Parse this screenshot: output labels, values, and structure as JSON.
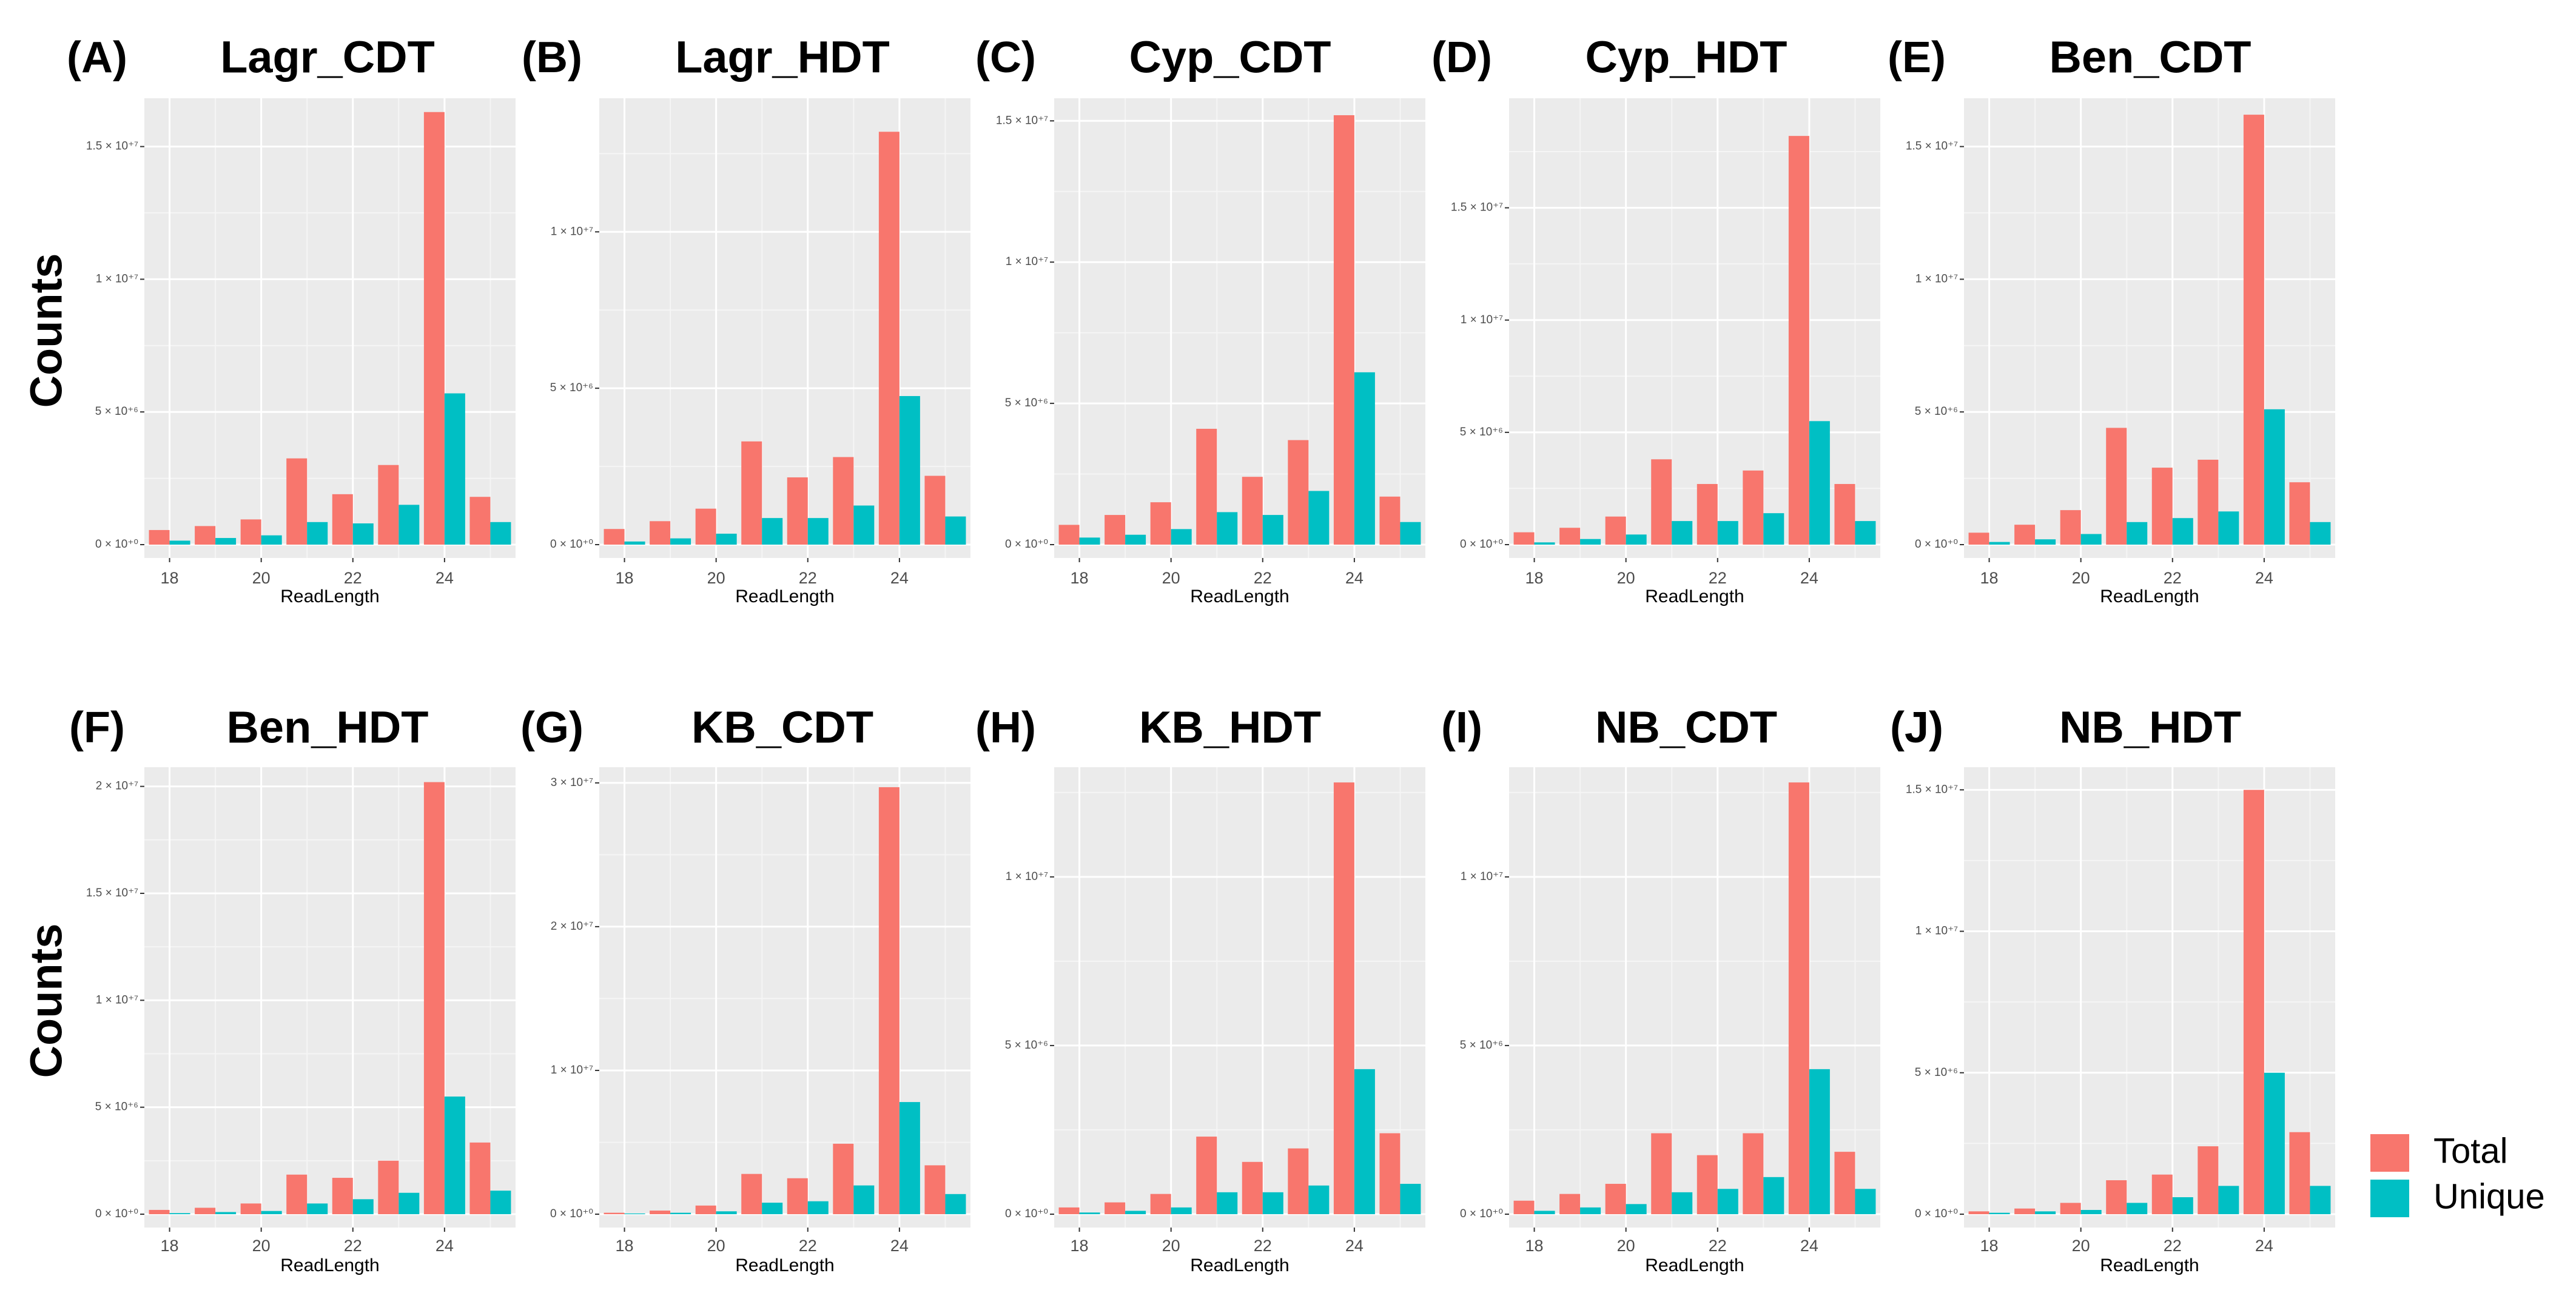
{
  "colors": {
    "total": "#F8766D",
    "unique": "#00BFC4",
    "panel_bg": "#EBEBEB",
    "grid_major": "#FFFFFF",
    "grid_minor": "#F5F5F5"
  },
  "rows": [
    {
      "label": "Counts"
    },
    {
      "label": "Counts"
    }
  ],
  "legend": {
    "items": [
      {
        "key": "total",
        "label": "Total"
      },
      {
        "key": "unique",
        "label": "Unique"
      }
    ]
  },
  "chart_data": [
    {
      "type": "bar",
      "panel_letter": "(A)",
      "title": "Lagr_CDT",
      "xlabel": "ReadLength",
      "ylabel": "Counts",
      "x": [
        18,
        19,
        20,
        21,
        22,
        23,
        24,
        25
      ],
      "x_ticks": [
        "18",
        "20",
        "22",
        "24"
      ],
      "x_tick_values": [
        18,
        20,
        22,
        24
      ],
      "ylim": [
        0,
        16500000.0
      ],
      "y_ticks": [
        0,
        5000000.0,
        10000000.0,
        15000000.0
      ],
      "y_tick_labels": [
        "0 × 10⁺⁰",
        "5 × 10⁺⁶",
        "1 × 10⁺⁷",
        "1.5 × 10⁺⁷"
      ],
      "series": [
        {
          "name": "Total",
          "values": [
            550000,
            700000,
            950000,
            3250000,
            1900000,
            3000000,
            16300000,
            1800000
          ]
        },
        {
          "name": "Unique",
          "values": [
            150000,
            250000,
            350000,
            850000,
            800000,
            1500000,
            5700000,
            850000
          ]
        }
      ]
    },
    {
      "type": "bar",
      "panel_letter": "(B)",
      "title": "Lagr_HDT",
      "xlabel": "ReadLength",
      "ylabel": "Counts",
      "x": [
        18,
        19,
        20,
        21,
        22,
        23,
        24,
        25
      ],
      "x_ticks": [
        "18",
        "20",
        "22",
        "24"
      ],
      "x_tick_values": [
        18,
        20,
        22,
        24
      ],
      "ylim": [
        0,
        14000000.0
      ],
      "y_ticks": [
        0,
        5000000.0,
        10000000.0
      ],
      "y_tick_labels": [
        "0 × 10⁺⁰",
        "5 × 10⁺⁶",
        "1 × 10⁺⁷"
      ],
      "series": [
        {
          "name": "Total",
          "values": [
            500000,
            750000,
            1150000,
            3300000,
            2150000,
            2800000,
            13200000,
            2200000
          ]
        },
        {
          "name": "Unique",
          "values": [
            100000,
            200000,
            350000,
            850000,
            850000,
            1250000,
            4750000,
            900000
          ]
        }
      ]
    },
    {
      "type": "bar",
      "panel_letter": "(C)",
      "title": "Cyp_CDT",
      "xlabel": "ReadLength",
      "ylabel": "Counts",
      "x": [
        18,
        19,
        20,
        21,
        22,
        23,
        24,
        25
      ],
      "x_ticks": [
        "18",
        "20",
        "22",
        "24"
      ],
      "x_tick_values": [
        18,
        20,
        22,
        24
      ],
      "ylim": [
        0,
        15500000.0
      ],
      "y_ticks": [
        0,
        5000000.0,
        10000000.0,
        15000000.0
      ],
      "y_tick_labels": [
        "0 × 10⁺⁰",
        "5 × 10⁺⁶",
        "1 × 10⁺⁷",
        "1.5 × 10⁺⁷"
      ],
      "series": [
        {
          "name": "Total",
          "values": [
            700000,
            1050000,
            1500000,
            4100000,
            2400000,
            3700000,
            15200000,
            1700000
          ]
        },
        {
          "name": "Unique",
          "values": [
            250000,
            350000,
            550000,
            1150000,
            1050000,
            1900000,
            6100000,
            800000
          ]
        }
      ]
    },
    {
      "type": "bar",
      "panel_letter": "(D)",
      "title": "Cyp_HDT",
      "xlabel": "ReadLength",
      "ylabel": "Counts",
      "x": [
        18,
        19,
        20,
        21,
        22,
        23,
        24,
        25
      ],
      "x_ticks": [
        "18",
        "20",
        "22",
        "24"
      ],
      "x_tick_values": [
        18,
        20,
        22,
        24
      ],
      "ylim": [
        0,
        19500000.0
      ],
      "y_ticks": [
        0,
        5000000.0,
        10000000.0,
        15000000.0
      ],
      "y_tick_labels": [
        "0 × 10⁺⁰",
        "5 × 10⁺⁶",
        "1 × 10⁺⁷",
        "1.5 × 10⁺⁷"
      ],
      "series": [
        {
          "name": "Total",
          "values": [
            550000,
            750000,
            1250000,
            3800000,
            2700000,
            3300000,
            18200000,
            2700000
          ]
        },
        {
          "name": "Unique",
          "values": [
            100000,
            250000,
            450000,
            1050000,
            1050000,
            1400000,
            5500000,
            1050000
          ]
        }
      ]
    },
    {
      "type": "bar",
      "panel_letter": "(E)",
      "title": "Ben_CDT",
      "xlabel": "ReadLength",
      "ylabel": "Counts",
      "x": [
        18,
        19,
        20,
        21,
        22,
        23,
        24,
        25
      ],
      "x_ticks": [
        "18",
        "20",
        "22",
        "24"
      ],
      "x_tick_values": [
        18,
        20,
        22,
        24
      ],
      "ylim": [
        0,
        16500000.0
      ],
      "y_ticks": [
        0,
        5000000.0,
        10000000.0,
        15000000.0
      ],
      "y_tick_labels": [
        "0 × 10⁺⁰",
        "5 × 10⁺⁶",
        "1 × 10⁺⁷",
        "1.5 × 10⁺⁷"
      ],
      "series": [
        {
          "name": "Total",
          "values": [
            450000,
            750000,
            1300000,
            4400000,
            2900000,
            3200000,
            16200000,
            2350000
          ]
        },
        {
          "name": "Unique",
          "values": [
            100000,
            200000,
            400000,
            850000,
            1000000,
            1250000,
            5100000,
            850000
          ]
        }
      ]
    },
    {
      "type": "bar",
      "panel_letter": "(F)",
      "title": "Ben_HDT",
      "xlabel": "ReadLength",
      "ylabel": "Counts",
      "x": [
        18,
        19,
        20,
        21,
        22,
        23,
        24,
        25
      ],
      "x_ticks": [
        "18",
        "20",
        "22",
        "24"
      ],
      "x_tick_values": [
        18,
        20,
        22,
        24
      ],
      "ylim": [
        0,
        20500000.0
      ],
      "y_ticks": [
        0,
        5000000.0,
        10000000.0,
        15000000.0,
        20000000.0
      ],
      "y_tick_labels": [
        "0 × 10⁺⁰",
        "5 × 10⁺⁶",
        "1 × 10⁺⁷",
        "1.5 × 10⁺⁷",
        "2 × 10⁺⁷"
      ],
      "series": [
        {
          "name": "Total",
          "values": [
            200000,
            300000,
            500000,
            1850000,
            1700000,
            2500000,
            20200000,
            3350000
          ]
        },
        {
          "name": "Unique",
          "values": [
            50000,
            100000,
            150000,
            500000,
            700000,
            1000000,
            5500000,
            1100000
          ]
        }
      ]
    },
    {
      "type": "bar",
      "panel_letter": "(G)",
      "title": "KB_CDT",
      "xlabel": "ReadLength",
      "ylabel": "Counts",
      "x": [
        18,
        19,
        20,
        21,
        22,
        23,
        24,
        25
      ],
      "x_ticks": [
        "18",
        "20",
        "22",
        "24"
      ],
      "x_tick_values": [
        18,
        20,
        22,
        24
      ],
      "ylim": [
        0,
        30500000.0
      ],
      "y_ticks": [
        0,
        10000000.0,
        20000000.0,
        30000000.0
      ],
      "y_tick_labels": [
        "0 × 10⁺⁰",
        "1 × 10⁺⁷",
        "2 × 10⁺⁷",
        "3 × 10⁺⁷"
      ],
      "series": [
        {
          "name": "Total",
          "values": [
            100000,
            250000,
            600000,
            2800000,
            2500000,
            4900000,
            29700000,
            3400000
          ]
        },
        {
          "name": "Unique",
          "values": [
            50000,
            100000,
            200000,
            800000,
            900000,
            2000000,
            7800000,
            1400000
          ]
        }
      ]
    },
    {
      "type": "bar",
      "panel_letter": "(H)",
      "title": "KB_HDT",
      "xlabel": "ReadLength",
      "ylabel": "Counts",
      "x": [
        18,
        19,
        20,
        21,
        22,
        23,
        24,
        25
      ],
      "x_ticks": [
        "18",
        "20",
        "22",
        "24"
      ],
      "x_tick_values": [
        18,
        20,
        22,
        24
      ],
      "ylim": [
        0,
        13000000.0
      ],
      "y_ticks": [
        0,
        5000000.0,
        10000000.0
      ],
      "y_tick_labels": [
        "0 × 10⁺⁰",
        "5 × 10⁺⁶",
        "1 × 10⁺⁷"
      ],
      "series": [
        {
          "name": "Total",
          "values": [
            200000,
            350000,
            600000,
            2300000,
            1550000,
            1950000,
            12800000,
            2400000
          ]
        },
        {
          "name": "Unique",
          "values": [
            50000,
            100000,
            200000,
            650000,
            650000,
            850000,
            4300000,
            900000
          ]
        }
      ]
    },
    {
      "type": "bar",
      "panel_letter": "(I)",
      "title": "NB_CDT",
      "xlabel": "ReadLength",
      "ylabel": "Counts",
      "x": [
        18,
        19,
        20,
        21,
        22,
        23,
        24,
        25
      ],
      "x_ticks": [
        "18",
        "20",
        "22",
        "24"
      ],
      "x_tick_values": [
        18,
        20,
        22,
        24
      ],
      "ylim": [
        0,
        13000000.0
      ],
      "y_ticks": [
        0,
        5000000.0,
        10000000.0
      ],
      "y_tick_labels": [
        "0 × 10⁺⁰",
        "5 × 10⁺⁶",
        "1 × 10⁺⁷"
      ],
      "series": [
        {
          "name": "Total",
          "values": [
            400000,
            600000,
            900000,
            2400000,
            1750000,
            2400000,
            12800000,
            1850000
          ]
        },
        {
          "name": "Unique",
          "values": [
            100000,
            200000,
            300000,
            650000,
            750000,
            1100000,
            4300000,
            750000
          ]
        }
      ]
    },
    {
      "type": "bar",
      "panel_letter": "(J)",
      "title": "NB_HDT",
      "xlabel": "ReadLength",
      "ylabel": "Counts",
      "x": [
        18,
        19,
        20,
        21,
        22,
        23,
        24,
        25
      ],
      "x_ticks": [
        "18",
        "20",
        "22",
        "24"
      ],
      "x_tick_values": [
        18,
        20,
        22,
        24
      ],
      "ylim": [
        0,
        15500000.0
      ],
      "y_ticks": [
        0,
        5000000.0,
        10000000.0,
        15000000.0
      ],
      "y_tick_labels": [
        "0 × 10⁺⁰",
        "5 × 10⁺⁶",
        "1 × 10⁺⁷",
        "1.5 × 10⁺⁷"
      ],
      "series": [
        {
          "name": "Total",
          "values": [
            100000,
            200000,
            400000,
            1200000,
            1400000,
            2400000,
            15000000,
            2900000
          ]
        },
        {
          "name": "Unique",
          "values": [
            50000,
            100000,
            150000,
            400000,
            600000,
            1000000,
            5000000,
            1000000
          ]
        }
      ]
    }
  ]
}
